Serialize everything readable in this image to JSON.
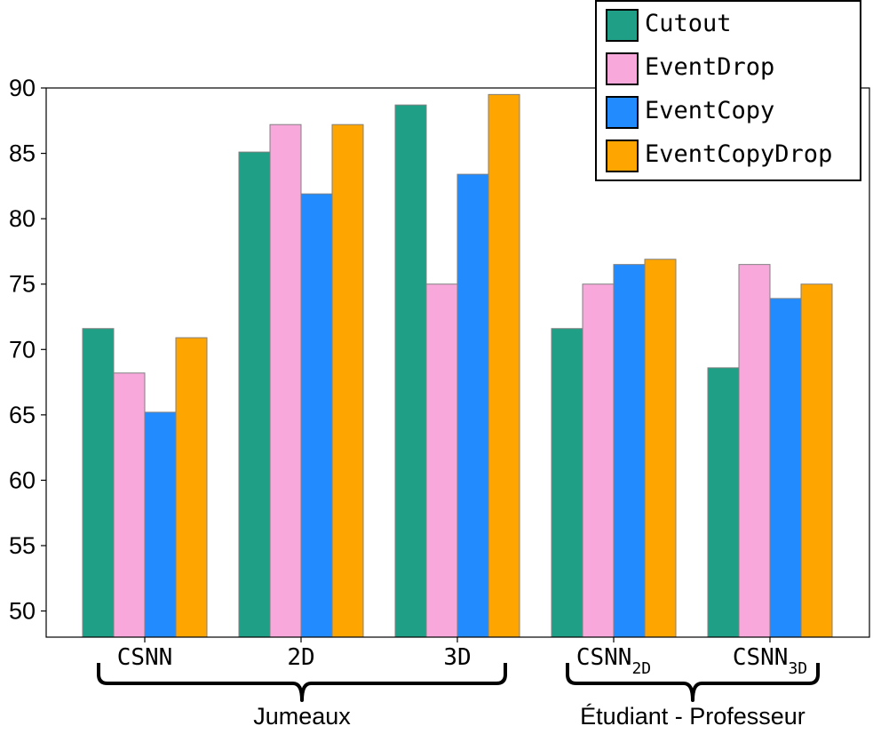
{
  "chart_data": {
    "type": "bar",
    "categories": [
      {
        "base": "CSNN",
        "sub": ""
      },
      {
        "base": "2D",
        "sub": ""
      },
      {
        "base": "3D",
        "sub": ""
      },
      {
        "base": "CSNN",
        "sub": "2D"
      },
      {
        "base": "CSNN",
        "sub": "3D"
      }
    ],
    "groups": [
      {
        "label": "Jumeaux",
        "categories": [
          0,
          1,
          2
        ]
      },
      {
        "label": "Étudiant - Professeur",
        "categories": [
          3,
          4
        ]
      }
    ],
    "series": [
      {
        "name": "Cutout",
        "color": "#1fa086",
        "values": [
          71.6,
          85.1,
          88.7,
          71.6,
          68.6
        ]
      },
      {
        "name": "EventDrop",
        "color": "#f9a8dc",
        "values": [
          68.2,
          87.2,
          75.0,
          75.0,
          76.5
        ]
      },
      {
        "name": "EventCopy",
        "color": "#228cff",
        "values": [
          65.2,
          81.9,
          83.4,
          76.5,
          73.9
        ]
      },
      {
        "name": "EventCopyDrop",
        "color": "#ffa500",
        "values": [
          70.9,
          87.2,
          89.5,
          76.9,
          75.0
        ]
      }
    ],
    "yticks": [
      50,
      55,
      60,
      65,
      70,
      75,
      80,
      85,
      90
    ],
    "ylim": [
      48,
      90
    ],
    "title": "",
    "xlabel": "",
    "ylabel": "",
    "legend": "top-right",
    "grid": false
  }
}
